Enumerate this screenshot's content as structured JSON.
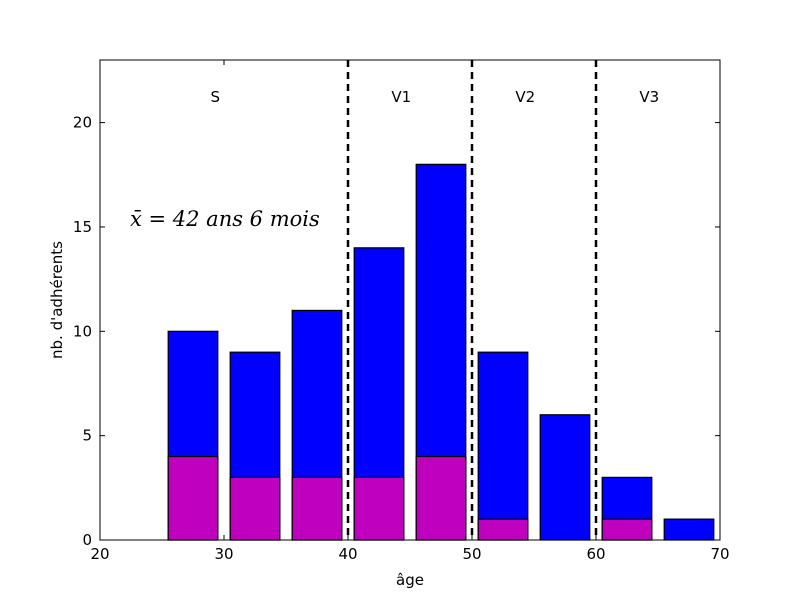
{
  "chart_data": {
    "type": "bar",
    "stacked": false,
    "overlaid": true,
    "xlabel": "âge",
    "ylabel": "nb. d'adhérents",
    "xlim": [
      20,
      70
    ],
    "ylim": [
      0,
      23
    ],
    "xticks": [
      20,
      30,
      40,
      50,
      60,
      70
    ],
    "yticks": [
      0,
      5,
      10,
      15,
      20
    ],
    "bin_starts": [
      20,
      25,
      30,
      35,
      40,
      45,
      50,
      55,
      60,
      65
    ],
    "bin_width": 5,
    "series": [
      {
        "values": [
          0,
          10,
          9,
          11,
          14,
          18,
          9,
          6,
          3,
          1
        ],
        "color": "#0000ff"
      },
      {
        "values": [
          0,
          4,
          3,
          3,
          3,
          4,
          1,
          0,
          1,
          0
        ],
        "color": "#bf00bf"
      }
    ],
    "dividers": [
      40,
      50,
      60
    ],
    "regions": [
      {
        "label": "S",
        "x": 30
      },
      {
        "label": "V1",
        "x": 45
      },
      {
        "label": "V2",
        "x": 55
      },
      {
        "label": "V3",
        "x": 65
      }
    ],
    "annotation": "x̄ = 42 ans 6 mois",
    "grid": false
  }
}
